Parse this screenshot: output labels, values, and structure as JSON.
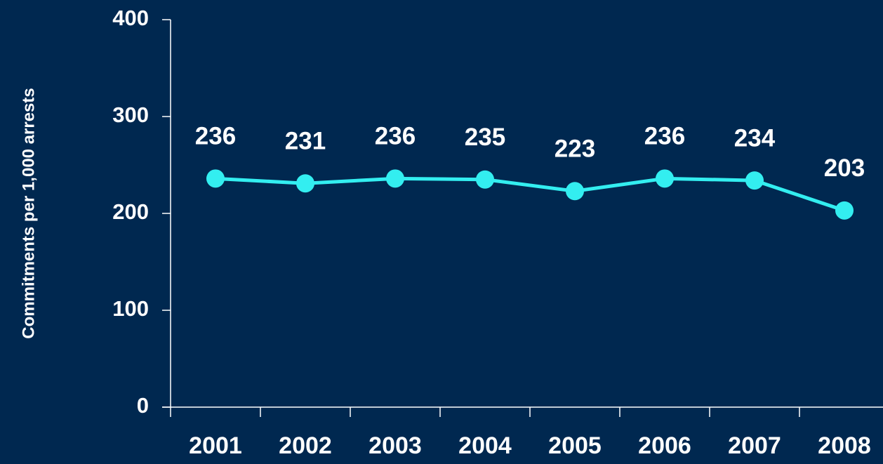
{
  "chart_data": {
    "type": "line",
    "y_axis_label": "Commitments per 1,000 arrests",
    "categories": [
      "2001",
      "2002",
      "2003",
      "2004",
      "2005",
      "2006",
      "2007",
      "2008"
    ],
    "series": [
      {
        "name": "Commitments",
        "color": "#33eef0",
        "values": [
          236,
          231,
          236,
          235,
          223,
          236,
          234,
          203
        ]
      }
    ],
    "ylim": [
      0,
      400
    ],
    "yticks": [
      0,
      100,
      200,
      300,
      400
    ],
    "grid": false
  }
}
